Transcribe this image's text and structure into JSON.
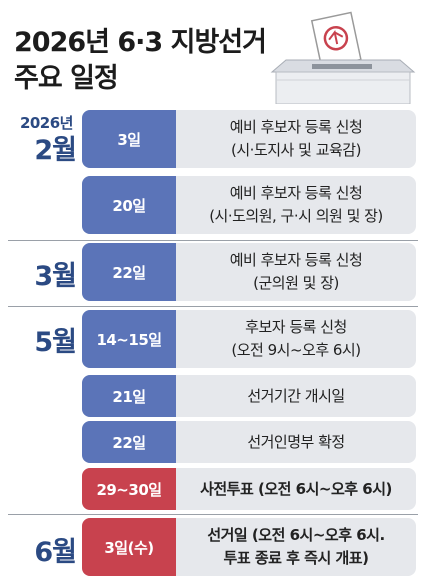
{
  "title": {
    "line1": "2026년 6·3 지방선거",
    "line2": "주요 일정"
  },
  "year_label": "2026년",
  "months": {
    "feb": "2월",
    "mar": "3월",
    "may": "5월",
    "jun": "6월"
  },
  "schedule": [
    {
      "date": "3일",
      "line1": "예비 후보자 등록 신청",
      "line2": "(시·도지사 및 교육감)"
    },
    {
      "date": "20일",
      "line1": "예비 후보자 등록 신청",
      "line2": "(시·도의원, 구·시 의원 및 장)"
    },
    {
      "date": "22일",
      "line1": "예비 후보자 등록 신청",
      "line2": "(군의원 및 장)"
    },
    {
      "date": "14~15일",
      "line1": "후보자 등록 신청",
      "line2": "(오전 9시~오후 6시)"
    },
    {
      "date": "21일",
      "line1": "선거기간 개시일"
    },
    {
      "date": "22일",
      "line1": "선거인명부 확정"
    },
    {
      "date": "29~30일",
      "line1": "사전투표 (오전 6시~오후 6시)"
    },
    {
      "date": "3일(수)",
      "line1": "선거일 (오전 6시~오후 6시.",
      "line2": "투표 종료 후 즉시 개표)"
    }
  ],
  "colors": {
    "tag_blue": "#5b74b8",
    "tag_red": "#c8424e",
    "row_bg": "#e6e8ec",
    "month_text": "#2b4a83"
  },
  "icons": {
    "ballot": "ballot-box-icon"
  }
}
